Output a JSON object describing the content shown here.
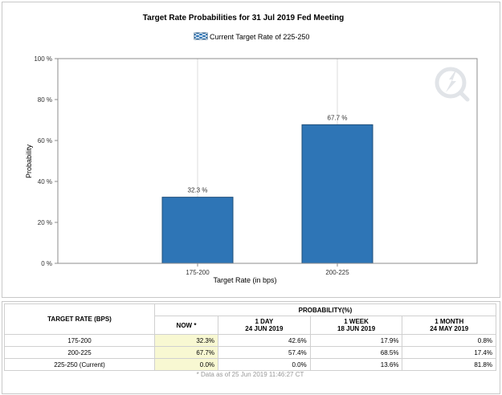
{
  "chart_data": {
    "type": "bar",
    "title": "Target Rate Probabilities for 31 Jul 2019 Fed Meeting",
    "legend": "Current Target Rate of 225-250",
    "legend_position": "top-center",
    "xlabel": "Target Rate (in bps)",
    "ylabel": "Probability",
    "categories": [
      "175-200",
      "200-225"
    ],
    "values": [
      32.3,
      67.7
    ],
    "value_labels": [
      "32.3 %",
      "67.7 %"
    ],
    "ylim": [
      0,
      100
    ],
    "yticks": [
      0,
      20,
      40,
      60,
      80,
      100
    ],
    "ytick_labels": [
      "0 %",
      "20 %",
      "40 %",
      "60 %",
      "80 %",
      "100 %"
    ],
    "bar_color": "#2e75b6",
    "grid": "vertical"
  },
  "table": {
    "target_header": "TARGET RATE (BPS)",
    "probability_header": "PROBABILITY(%)",
    "columns": [
      {
        "label": "NOW *",
        "sub": ""
      },
      {
        "label": "1 DAY",
        "sub": "24 JUN 2019"
      },
      {
        "label": "1 WEEK",
        "sub": "18 JUN 2019"
      },
      {
        "label": "1 MONTH",
        "sub": "24 MAY 2019"
      }
    ],
    "rows": [
      {
        "rate": "175-200",
        "values": [
          "32.3%",
          "42.6%",
          "17.9%",
          "0.8%"
        ]
      },
      {
        "rate": "200-225",
        "values": [
          "67.7%",
          "57.4%",
          "68.5%",
          "17.4%"
        ]
      },
      {
        "rate": "225-250 (Current)",
        "values": [
          "0.0%",
          "0.0%",
          "13.6%",
          "81.8%"
        ]
      }
    ],
    "footnote": "* Data as of 25 Jun 2019 11:46:27 CT"
  },
  "colors": {
    "now_highlight": "#f8f8d2",
    "watermark": "#d6dbe3"
  }
}
